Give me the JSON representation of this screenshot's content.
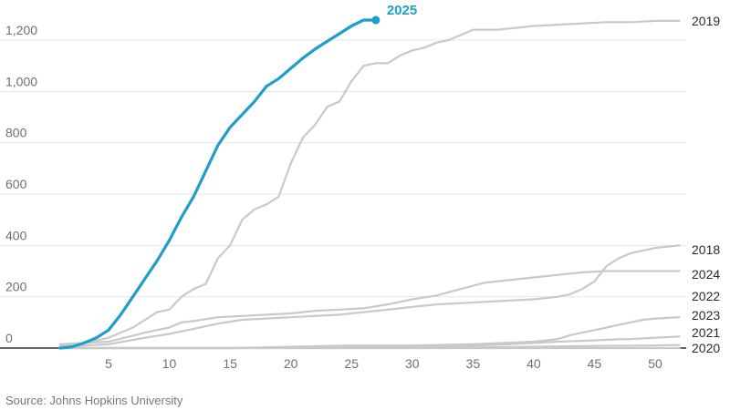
{
  "colors": {
    "highlight": "#1f9ec9",
    "other_series": "#c9c9c9",
    "grid": "#e6e6e6",
    "axis": "#333333"
  },
  "source_text": "Source: Johns Hopkins University",
  "chart_data": {
    "type": "line",
    "title": "",
    "xlabel": "",
    "ylabel": "",
    "xlim": [
      0,
      52
    ],
    "ylim": [
      0,
      1300
    ],
    "x_ticks": [
      5,
      10,
      15,
      20,
      25,
      30,
      35,
      40,
      45,
      50
    ],
    "y_ticks": [
      0,
      200,
      400,
      600,
      800,
      1000,
      1200
    ],
    "y_tick_labels": [
      "0",
      "200",
      "400",
      "600",
      "800",
      "1,000",
      "1,200"
    ],
    "grid": "horizontal",
    "legend": "end-of-line labels",
    "highlight_series": "2025",
    "series": [
      {
        "name": "2019",
        "x": [
          1,
          3,
          5,
          7,
          9,
          10,
          11,
          12,
          13,
          14,
          15,
          16,
          17,
          18,
          19,
          20,
          21,
          22,
          23,
          24,
          25,
          26,
          27,
          28,
          29,
          30,
          31,
          32,
          33,
          34,
          35,
          36,
          37,
          38,
          40,
          42,
          44,
          46,
          48,
          50,
          52
        ],
        "y": [
          10,
          20,
          40,
          80,
          140,
          150,
          200,
          230,
          250,
          350,
          400,
          500,
          540,
          560,
          590,
          720,
          820,
          870,
          940,
          960,
          1040,
          1100,
          1110,
          1110,
          1140,
          1160,
          1170,
          1190,
          1200,
          1220,
          1240,
          1240,
          1240,
          1245,
          1255,
          1260,
          1265,
          1270,
          1270,
          1275,
          1275
        ]
      },
      {
        "name": "2018",
        "x": [
          1,
          5,
          10,
          15,
          20,
          25,
          30,
          35,
          40,
          42,
          43,
          44,
          45,
          46,
          47,
          48,
          49,
          50,
          52
        ],
        "y": [
          0,
          0,
          0,
          0,
          5,
          10,
          10,
          15,
          25,
          35,
          50,
          60,
          70,
          80,
          90,
          100,
          110,
          115,
          120
        ]
      },
      {
        "name": "2024",
        "x": [
          1,
          5,
          10,
          15,
          20,
          25,
          30,
          35,
          38,
          40,
          42,
          44,
          45,
          46,
          47,
          48,
          50,
          52
        ],
        "y": [
          0,
          0,
          0,
          0,
          2,
          5,
          8,
          10,
          15,
          20,
          25,
          28,
          30,
          32,
          34,
          35,
          40,
          45
        ]
      },
      {
        "name": "2022",
        "x": [
          1,
          5,
          8,
          10,
          11,
          12,
          14,
          16,
          18,
          20,
          22,
          24,
          26,
          28,
          30,
          32,
          34,
          36,
          38,
          40,
          42,
          44,
          46,
          48,
          50,
          52
        ],
        "y": [
          15,
          25,
          60,
          80,
          100,
          105,
          120,
          125,
          130,
          135,
          145,
          150,
          155,
          170,
          190,
          205,
          230,
          255,
          265,
          275,
          285,
          295,
          300,
          300,
          300,
          300
        ]
      },
      {
        "name": "2023",
        "x": [
          1,
          5,
          8,
          10,
          12,
          14,
          16,
          18,
          20,
          22,
          24,
          26,
          28,
          30,
          32,
          34,
          36,
          38,
          40,
          42,
          43,
          44,
          45,
          46,
          47,
          48,
          49,
          50,
          52
        ],
        "y": [
          5,
          15,
          40,
          55,
          75,
          95,
          110,
          115,
          120,
          125,
          130,
          140,
          150,
          160,
          170,
          175,
          180,
          185,
          190,
          200,
          210,
          230,
          260,
          320,
          350,
          370,
          380,
          390,
          400
        ]
      },
      {
        "name": "2021",
        "x": [
          1,
          5,
          10,
          15,
          20,
          25,
          30,
          35,
          40,
          45,
          50,
          52
        ],
        "y": [
          0,
          0,
          0,
          0,
          0,
          0,
          2,
          3,
          5,
          8,
          10,
          12
        ]
      },
      {
        "name": "2020",
        "x": [
          1,
          5,
          10,
          15,
          20,
          25,
          30,
          35,
          40,
          45,
          50,
          52
        ],
        "y": [
          0,
          0,
          0,
          0,
          0,
          0,
          0,
          0,
          0,
          0,
          0,
          0
        ]
      },
      {
        "name": "2025",
        "x": [
          1,
          2,
          3,
          4,
          5,
          6,
          7,
          8,
          9,
          10,
          11,
          12,
          13,
          14,
          15,
          16,
          17,
          18,
          19,
          20,
          21,
          22,
          23,
          24,
          25,
          26,
          27
        ],
        "y": [
          0,
          5,
          20,
          40,
          70,
          130,
          200,
          270,
          340,
          420,
          510,
          590,
          690,
          790,
          860,
          910,
          960,
          1020,
          1050,
          1090,
          1130,
          1165,
          1195,
          1225,
          1255,
          1278,
          1278
        ]
      }
    ]
  }
}
